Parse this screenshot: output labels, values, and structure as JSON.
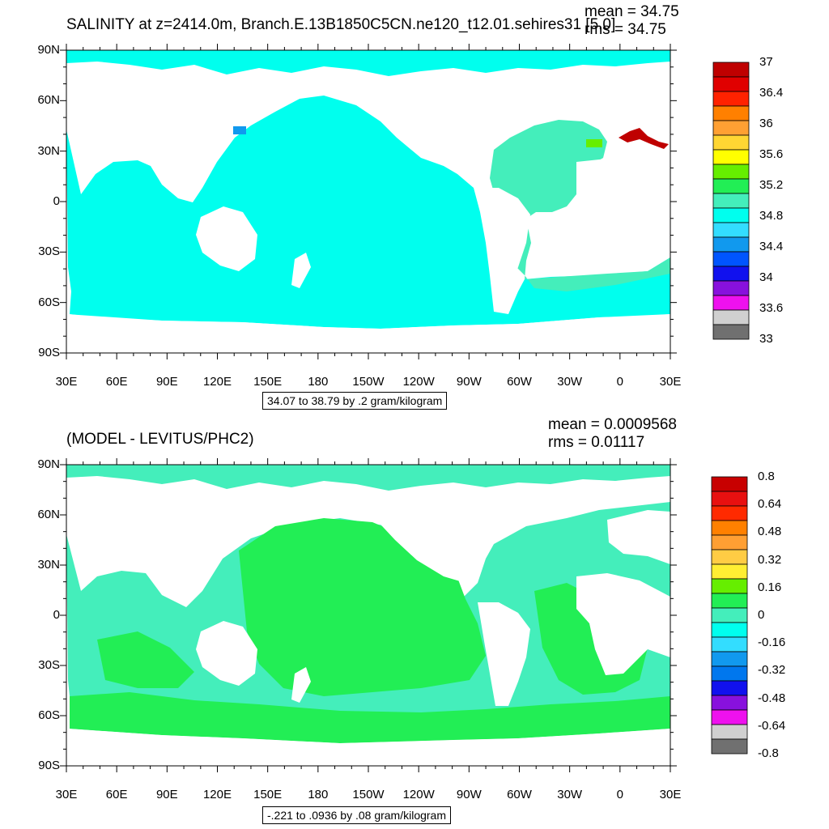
{
  "top_panel": {
    "title": "SALINITY at z=2414.0m, Branch.E.13B1850C5CN.ne120_t12.01.sehires31 [5.0]",
    "mean_text": "mean = 34.75",
    "rms_text": "rms = 34.75",
    "range_text": "34.07 to 38.79 by .2 gram/kilogram",
    "lat_labels": [
      "90N",
      "60N",
      "30N",
      "0",
      "30S",
      "60S",
      "90S"
    ],
    "lon_labels": [
      "30E",
      "60E",
      "90E",
      "120E",
      "150E",
      "180",
      "150W",
      "120W",
      "90W",
      "60W",
      "30W",
      "0",
      "30E"
    ],
    "colorbar": {
      "labels": [
        "37",
        "36.4",
        "36",
        "35.6",
        "35.2",
        "34.8",
        "34.4",
        "34",
        "33.6",
        "33"
      ],
      "colors": [
        "#bf0000",
        "#e00000",
        "#ff2200",
        "#ff8000",
        "#ffa033",
        "#ffd633",
        "#ffff00",
        "#66ee00",
        "#22ee55",
        "#44eebb",
        "#00ffee",
        "#33ddff",
        "#1199ee",
        "#0055ff",
        "#1111ee",
        "#8811dd",
        "#ee11ee",
        "#d0d0d0",
        "#707070"
      ]
    },
    "ocean_color": "#00ffee",
    "atlantic_color": "#44eebb"
  },
  "bottom_panel": {
    "title": "(MODEL - LEVITUS/PHC2)",
    "mean_text": "mean = 0.0009568",
    "rms_text": "rms = 0.01117",
    "range_text": "-.221 to .0936 by .08 gram/kilogram",
    "lat_labels": [
      "90N",
      "60N",
      "30N",
      "0",
      "30S",
      "60S",
      "90S"
    ],
    "lon_labels": [
      "30E",
      "60E",
      "90E",
      "120E",
      "150E",
      "180",
      "150W",
      "120W",
      "90W",
      "60W",
      "30W",
      "0",
      "30E"
    ],
    "colorbar": {
      "labels": [
        "0.8",
        "0.64",
        "0.48",
        "0.32",
        "0.16",
        "0",
        "-0.16",
        "-0.32",
        "-0.48",
        "-0.64",
        "-0.8"
      ],
      "colors": [
        "#c80000",
        "#e81010",
        "#ff2a00",
        "#ff8000",
        "#ff9f33",
        "#ffcc44",
        "#ffee33",
        "#66ee00",
        "#22ee55",
        "#44eebb",
        "#00ffee",
        "#33ddff",
        "#1199ee",
        "#0077ee",
        "#1111ee",
        "#8811dd",
        "#ee11ee",
        "#d0d0d0",
        "#707070"
      ]
    },
    "ocean_color": "#44eebb",
    "positive_color": "#22ee55"
  }
}
